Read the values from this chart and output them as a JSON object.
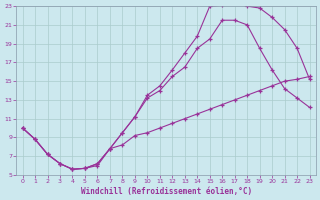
{
  "bg_color": "#cce8ee",
  "grid_color": "#aacccc",
  "line_color": "#993399",
  "xlabel": "Windchill (Refroidissement éolien,°C)",
  "xlim": [
    -0.5,
    23.5
  ],
  "ylim": [
    5,
    23
  ],
  "xticks": [
    0,
    1,
    2,
    3,
    4,
    5,
    6,
    7,
    8,
    9,
    10,
    11,
    12,
    13,
    14,
    15,
    16,
    17,
    18,
    19,
    20,
    21,
    22,
    23
  ],
  "yticks": [
    5,
    7,
    9,
    11,
    13,
    15,
    17,
    19,
    21,
    23
  ],
  "line1_x": [
    0,
    1,
    2,
    3,
    4,
    5,
    6,
    7,
    8,
    9,
    10,
    11,
    12,
    13,
    14,
    15,
    16,
    17,
    18,
    19,
    20,
    21,
    22,
    23
  ],
  "line1_y": [
    10.0,
    8.8,
    7.2,
    6.2,
    5.6,
    5.7,
    6.0,
    7.8,
    8.2,
    9.2,
    9.5,
    10.0,
    10.5,
    11.0,
    11.5,
    12.0,
    12.5,
    13.0,
    13.5,
    14.0,
    14.5,
    15.0,
    15.2,
    15.5
  ],
  "line2_x": [
    0,
    1,
    2,
    3,
    4,
    5,
    6,
    7,
    8,
    9,
    10,
    11,
    12,
    13,
    14,
    15,
    16,
    17,
    18,
    19,
    20,
    21,
    22,
    23
  ],
  "line2_y": [
    10.0,
    8.8,
    7.2,
    6.2,
    5.6,
    5.7,
    6.2,
    7.8,
    9.5,
    11.2,
    13.2,
    14.0,
    15.5,
    16.5,
    18.5,
    19.5,
    21.5,
    21.5,
    21.0,
    18.5,
    16.2,
    14.2,
    13.2,
    12.2
  ],
  "line3_x": [
    0,
    1,
    2,
    3,
    4,
    5,
    6,
    7,
    8,
    9,
    10,
    11,
    12,
    13,
    14,
    15,
    16,
    17,
    18,
    19,
    20,
    21,
    22,
    23
  ],
  "line3_y": [
    10.0,
    8.8,
    7.2,
    6.2,
    5.6,
    5.7,
    6.2,
    7.8,
    9.5,
    11.2,
    13.5,
    14.5,
    16.2,
    18.0,
    19.8,
    23.0,
    23.1,
    23.3,
    23.0,
    22.8,
    21.8,
    20.5,
    18.5,
    15.2
  ]
}
